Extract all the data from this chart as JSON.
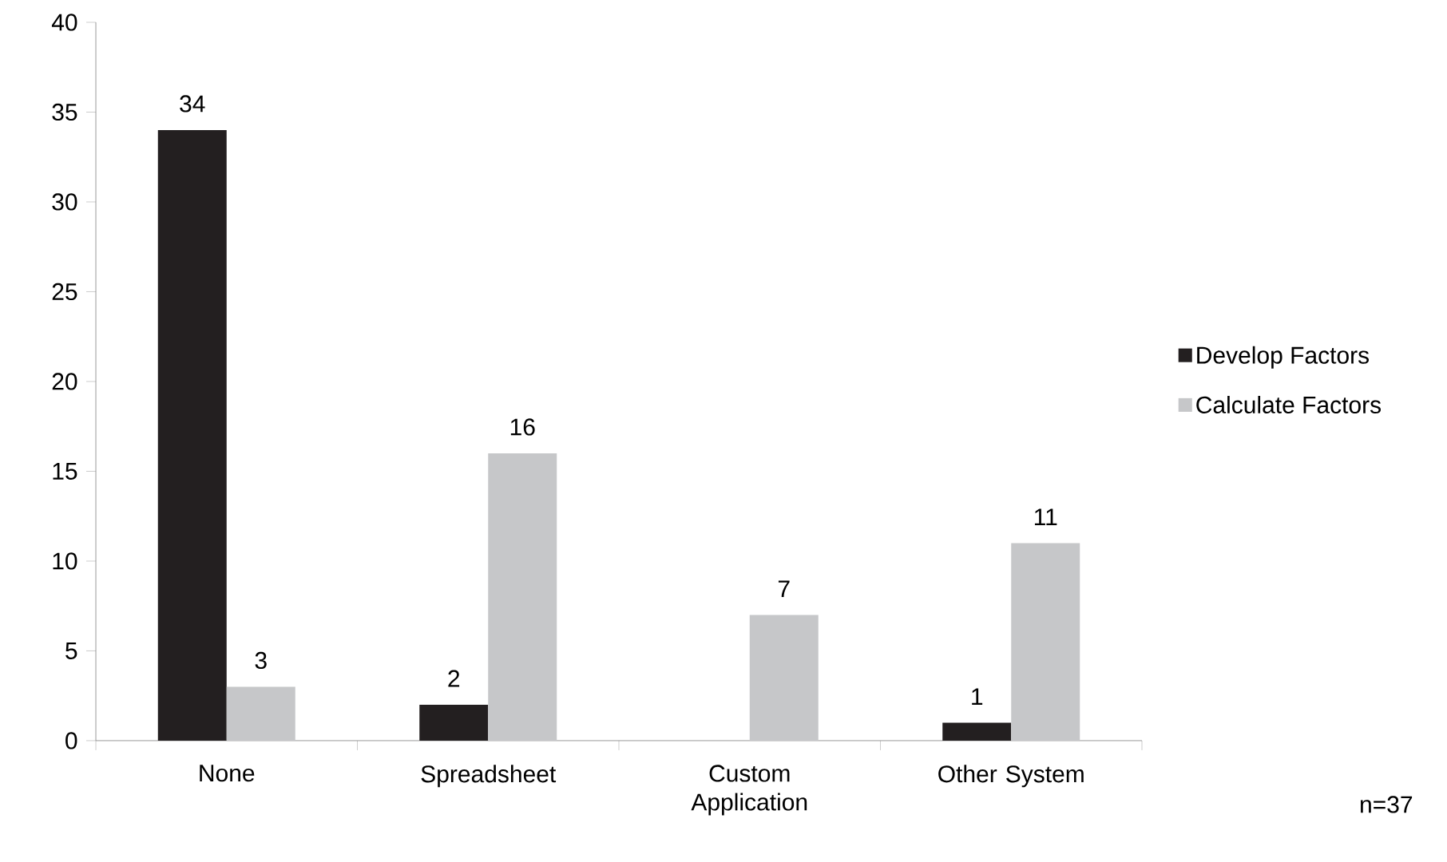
{
  "chart_data": {
    "type": "bar",
    "categories": [
      "None",
      "Spreadsheet",
      "Custom Application",
      "Other System"
    ],
    "series": [
      {
        "name": "Develop Factors",
        "color": "#231f20",
        "values": [
          34,
          2,
          0,
          1
        ],
        "value_labels": [
          "34",
          "2",
          null,
          "1"
        ]
      },
      {
        "name": "Calculate Factors",
        "color": "#c6c7c9",
        "values": [
          3,
          16,
          7,
          11
        ],
        "value_labels": [
          "3",
          "16",
          "7",
          "11"
        ]
      }
    ],
    "ylim": [
      0,
      40
    ],
    "yticks": [
      0,
      5,
      10,
      15,
      20,
      25,
      30,
      35,
      40
    ],
    "grid": false,
    "legend": "right",
    "annotations": [
      "n=37"
    ]
  }
}
